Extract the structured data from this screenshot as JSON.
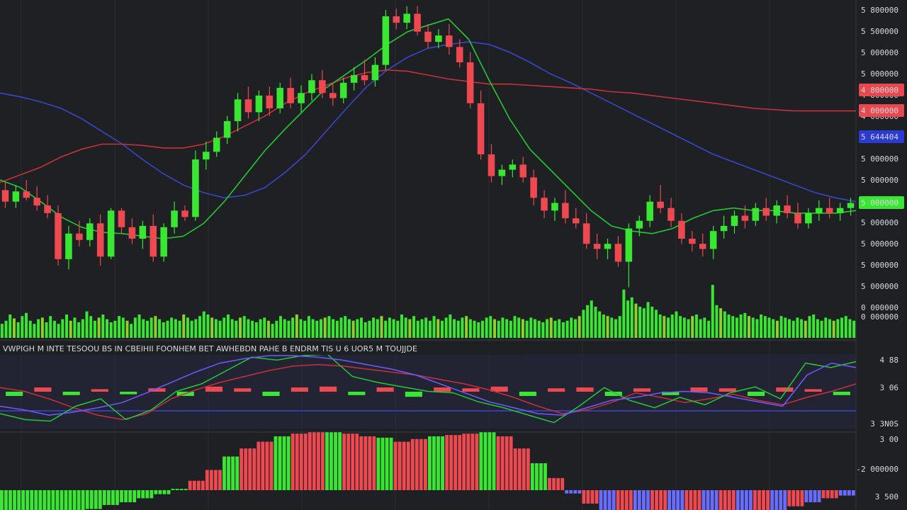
{
  "chart_data": [
    {
      "panel": "price",
      "type": "candlestick",
      "price_axis_labels": [
        "5 800000",
        "5 500000",
        "5 000000",
        "5 000000",
        "4 800000",
        "4 000000",
        "5 644404",
        "5 000000",
        "5 000000",
        "5 000000",
        "5 000000",
        "5 000000",
        "5 000000",
        "5 000000",
        "0 000000"
      ],
      "badges": [
        {
          "label": "4 800000",
          "color": "#e8484f",
          "series": "red"
        },
        {
          "label": "4 000000",
          "color": "#e8484f",
          "series": "red"
        },
        {
          "label": "5 644404",
          "color": "#2b3ad0",
          "series": "blue"
        },
        {
          "label": "5 000000",
          "color": "#39e632",
          "series": "green"
        }
      ],
      "candles": [
        {
          "o": 5.14,
          "h": 5.2,
          "l": 5.0,
          "c": 5.05
        },
        {
          "o": 5.05,
          "h": 5.18,
          "l": 5.0,
          "c": 5.13
        },
        {
          "o": 5.13,
          "h": 5.22,
          "l": 5.06,
          "c": 5.08
        },
        {
          "o": 5.08,
          "h": 5.17,
          "l": 4.98,
          "c": 5.02
        },
        {
          "o": 5.02,
          "h": 5.1,
          "l": 4.92,
          "c": 4.96
        },
        {
          "o": 4.96,
          "h": 5.02,
          "l": 4.55,
          "c": 4.6
        },
        {
          "o": 4.6,
          "h": 4.86,
          "l": 4.52,
          "c": 4.8
        },
        {
          "o": 4.8,
          "h": 4.9,
          "l": 4.7,
          "c": 4.75
        },
        {
          "o": 4.75,
          "h": 4.92,
          "l": 4.7,
          "c": 4.88
        },
        {
          "o": 4.88,
          "h": 4.95,
          "l": 4.55,
          "c": 4.62
        },
        {
          "o": 4.62,
          "h": 5.0,
          "l": 4.6,
          "c": 4.98
        },
        {
          "o": 4.98,
          "h": 5.0,
          "l": 4.8,
          "c": 4.85
        },
        {
          "o": 4.85,
          "h": 4.92,
          "l": 4.72,
          "c": 4.76
        },
        {
          "o": 4.76,
          "h": 4.9,
          "l": 4.68,
          "c": 4.86
        },
        {
          "o": 4.86,
          "h": 4.95,
          "l": 4.58,
          "c": 4.62
        },
        {
          "o": 4.62,
          "h": 4.88,
          "l": 4.58,
          "c": 4.85
        },
        {
          "o": 4.85,
          "h": 5.05,
          "l": 4.8,
          "c": 4.98
        },
        {
          "o": 4.98,
          "h": 5.02,
          "l": 4.9,
          "c": 4.93
        },
        {
          "o": 4.93,
          "h": 5.45,
          "l": 4.9,
          "c": 5.38
        },
        {
          "o": 5.38,
          "h": 5.52,
          "l": 5.3,
          "c": 5.44
        },
        {
          "o": 5.44,
          "h": 5.6,
          "l": 5.4,
          "c": 5.55
        },
        {
          "o": 5.55,
          "h": 5.72,
          "l": 5.5,
          "c": 5.68
        },
        {
          "o": 5.68,
          "h": 5.9,
          "l": 5.6,
          "c": 5.85
        },
        {
          "o": 5.85,
          "h": 5.95,
          "l": 5.7,
          "c": 5.75
        },
        {
          "o": 5.75,
          "h": 5.92,
          "l": 5.68,
          "c": 5.88
        },
        {
          "o": 5.88,
          "h": 5.95,
          "l": 5.72,
          "c": 5.78
        },
        {
          "o": 5.78,
          "h": 5.98,
          "l": 5.74,
          "c": 5.94
        },
        {
          "o": 5.94,
          "h": 6.02,
          "l": 5.78,
          "c": 5.82
        },
        {
          "o": 5.82,
          "h": 5.96,
          "l": 5.75,
          "c": 5.9
        },
        {
          "o": 5.9,
          "h": 6.05,
          "l": 5.84,
          "c": 6.0
        },
        {
          "o": 6.0,
          "h": 6.08,
          "l": 5.86,
          "c": 5.9
        },
        {
          "o": 5.9,
          "h": 5.98,
          "l": 5.8,
          "c": 5.86
        },
        {
          "o": 5.86,
          "h": 6.02,
          "l": 5.82,
          "c": 5.98
        },
        {
          "o": 5.98,
          "h": 6.1,
          "l": 5.92,
          "c": 6.04
        },
        {
          "o": 6.04,
          "h": 6.16,
          "l": 5.96,
          "c": 6.0
        },
        {
          "o": 6.0,
          "h": 6.18,
          "l": 5.95,
          "c": 6.12
        },
        {
          "o": 6.12,
          "h": 6.55,
          "l": 6.08,
          "c": 6.5
        },
        {
          "o": 6.5,
          "h": 6.56,
          "l": 6.4,
          "c": 6.45
        },
        {
          "o": 6.45,
          "h": 6.58,
          "l": 6.4,
          "c": 6.52
        },
        {
          "o": 6.52,
          "h": 6.58,
          "l": 6.35,
          "c": 6.38
        },
        {
          "o": 6.38,
          "h": 6.44,
          "l": 6.25,
          "c": 6.3
        },
        {
          "o": 6.3,
          "h": 6.4,
          "l": 6.25,
          "c": 6.35
        },
        {
          "o": 6.35,
          "h": 6.44,
          "l": 6.2,
          "c": 6.26
        },
        {
          "o": 6.26,
          "h": 6.32,
          "l": 6.1,
          "c": 6.14
        },
        {
          "o": 6.14,
          "h": 6.22,
          "l": 5.78,
          "c": 5.82
        },
        {
          "o": 5.82,
          "h": 5.92,
          "l": 5.38,
          "c": 5.42
        },
        {
          "o": 5.42,
          "h": 5.5,
          "l": 5.2,
          "c": 5.25
        },
        {
          "o": 5.25,
          "h": 5.34,
          "l": 5.18,
          "c": 5.3
        },
        {
          "o": 5.3,
          "h": 5.38,
          "l": 5.24,
          "c": 5.34
        },
        {
          "o": 5.34,
          "h": 5.4,
          "l": 5.2,
          "c": 5.24
        },
        {
          "o": 5.24,
          "h": 5.3,
          "l": 5.02,
          "c": 5.08
        },
        {
          "o": 5.08,
          "h": 5.14,
          "l": 4.92,
          "c": 4.98
        },
        {
          "o": 4.98,
          "h": 5.08,
          "l": 4.9,
          "c": 5.04
        },
        {
          "o": 5.04,
          "h": 5.14,
          "l": 4.88,
          "c": 4.92
        },
        {
          "o": 4.92,
          "h": 5.0,
          "l": 4.84,
          "c": 4.88
        },
        {
          "o": 4.88,
          "h": 4.96,
          "l": 4.68,
          "c": 4.72
        },
        {
          "o": 4.72,
          "h": 4.8,
          "l": 4.6,
          "c": 4.68
        },
        {
          "o": 4.68,
          "h": 4.76,
          "l": 4.6,
          "c": 4.72
        },
        {
          "o": 4.72,
          "h": 4.78,
          "l": 4.54,
          "c": 4.58
        },
        {
          "o": 4.58,
          "h": 4.88,
          "l": 4.38,
          "c": 4.84
        },
        {
          "o": 4.84,
          "h": 4.94,
          "l": 4.78,
          "c": 4.9
        },
        {
          "o": 4.9,
          "h": 5.1,
          "l": 4.85,
          "c": 5.05
        },
        {
          "o": 5.05,
          "h": 5.18,
          "l": 4.96,
          "c": 5.0
        },
        {
          "o": 5.0,
          "h": 5.08,
          "l": 4.85,
          "c": 4.9
        },
        {
          "o": 4.9,
          "h": 4.96,
          "l": 4.72,
          "c": 4.76
        },
        {
          "o": 4.76,
          "h": 4.82,
          "l": 4.66,
          "c": 4.72
        },
        {
          "o": 4.72,
          "h": 4.8,
          "l": 4.62,
          "c": 4.68
        },
        {
          "o": 4.68,
          "h": 4.86,
          "l": 4.6,
          "c": 4.82
        },
        {
          "o": 4.82,
          "h": 4.94,
          "l": 4.76,
          "c": 4.86
        },
        {
          "o": 4.86,
          "h": 4.98,
          "l": 4.8,
          "c": 4.94
        },
        {
          "o": 4.94,
          "h": 5.02,
          "l": 4.84,
          "c": 4.9
        },
        {
          "o": 4.9,
          "h": 5.04,
          "l": 4.86,
          "c": 5.0
        },
        {
          "o": 5.0,
          "h": 5.08,
          "l": 4.9,
          "c": 4.94
        },
        {
          "o": 4.94,
          "h": 5.06,
          "l": 4.88,
          "c": 5.02
        },
        {
          "o": 5.02,
          "h": 5.1,
          "l": 4.92,
          "c": 4.96
        },
        {
          "o": 4.96,
          "h": 5.04,
          "l": 4.84,
          "c": 4.88
        },
        {
          "o": 4.88,
          "h": 5.0,
          "l": 4.84,
          "c": 4.96
        },
        {
          "o": 4.96,
          "h": 5.06,
          "l": 4.9,
          "c": 5.0
        },
        {
          "o": 5.0,
          "h": 5.08,
          "l": 4.92,
          "c": 4.96
        },
        {
          "o": 4.96,
          "h": 5.04,
          "l": 4.9,
          "c": 5.0
        },
        {
          "o": 5.0,
          "h": 5.08,
          "l": 4.94,
          "c": 5.04
        }
      ],
      "moving_averages": [
        {
          "color": "#3a46c8",
          "values": [
            5.9,
            5.87,
            5.83,
            5.78,
            5.7,
            5.6,
            5.5,
            5.38,
            5.27,
            5.18,
            5.12,
            5.08,
            5.1,
            5.16,
            5.28,
            5.42,
            5.6,
            5.78,
            5.95,
            6.08,
            6.18,
            6.25,
            6.28,
            6.3,
            6.28,
            6.22,
            6.14,
            6.05,
            5.98,
            5.9,
            5.82,
            5.74,
            5.66,
            5.58,
            5.5,
            5.42,
            5.36,
            5.3,
            5.24,
            5.18,
            5.12,
            5.08,
            5.05
          ]
        },
        {
          "color": "#c8303a",
          "values": [
            5.2,
            5.26,
            5.32,
            5.4,
            5.46,
            5.5,
            5.5,
            5.49,
            5.47,
            5.47,
            5.5,
            5.56,
            5.64,
            5.72,
            5.82,
            5.9,
            5.96,
            6.02,
            6.06,
            6.08,
            6.07,
            6.04,
            6.01,
            5.99,
            5.97,
            5.97,
            5.96,
            5.95,
            5.94,
            5.93,
            5.91,
            5.9,
            5.88,
            5.86,
            5.84,
            5.82,
            5.8,
            5.78,
            5.77,
            5.76,
            5.76,
            5.76,
            5.76
          ]
        },
        {
          "color": "#25c832",
          "values": [
            5.22,
            5.16,
            5.05,
            4.93,
            4.85,
            4.81,
            4.8,
            4.78,
            4.76,
            4.78,
            4.88,
            5.05,
            5.25,
            5.45,
            5.62,
            5.78,
            5.94,
            6.05,
            6.16,
            6.28,
            6.38,
            6.43,
            6.48,
            6.32,
            6.0,
            5.7,
            5.46,
            5.3,
            5.14,
            4.98,
            4.86,
            4.82,
            4.8,
            4.84,
            4.92,
            4.98,
            5.0,
            4.98,
            4.98,
            4.96,
            4.96,
            4.96,
            4.98
          ]
        }
      ]
    },
    {
      "panel": "volume",
      "type": "bar",
      "values": [
        18,
        22,
        30,
        25,
        20,
        28,
        32,
        22,
        18,
        24,
        26,
        20,
        28,
        22,
        18,
        24,
        30,
        22,
        26,
        20,
        24,
        34,
        28,
        22,
        26,
        30,
        24,
        20,
        22,
        28,
        26,
        22,
        18,
        26,
        30,
        24,
        22,
        26,
        28,
        24,
        20,
        22,
        26,
        24,
        22,
        30,
        26,
        22,
        24,
        28,
        34,
        30,
        26,
        24,
        22,
        26,
        30,
        24,
        22,
        26,
        28,
        24,
        22,
        20,
        24,
        26,
        22,
        18,
        22,
        28,
        24,
        22,
        26,
        30,
        24,
        22,
        28,
        24,
        22,
        24,
        26,
        28,
        24,
        22,
        26,
        28,
        24,
        22,
        24,
        26,
        20,
        22,
        26,
        24,
        28,
        22,
        26,
        24,
        22,
        30,
        26,
        24,
        28,
        22,
        24,
        26,
        22,
        28,
        24,
        22,
        26,
        30,
        24,
        22,
        26,
        28,
        24,
        22,
        20,
        22,
        26,
        28,
        24,
        22,
        26,
        24,
        22,
        28,
        26,
        24,
        22,
        26,
        24,
        22,
        20,
        24,
        26,
        22,
        24,
        20,
        22,
        26,
        24,
        28,
        36,
        42,
        48,
        40,
        34,
        30,
        28,
        26,
        24,
        28,
        62,
        48,
        52,
        44,
        40,
        38,
        46,
        40,
        36,
        30,
        28,
        26,
        30,
        34,
        28,
        26,
        24,
        28,
        30,
        24,
        26,
        22,
        68,
        42,
        38,
        34,
        30,
        28,
        26,
        30,
        32,
        28,
        26,
        24,
        30,
        28,
        26,
        24,
        22,
        28,
        26,
        24,
        22,
        26,
        24,
        22,
        28,
        30,
        24,
        22,
        26,
        24,
        22,
        24,
        26,
        28,
        24,
        22
      ],
      "axis_label": "0 000000"
    },
    {
      "panel": "oscillator",
      "type": "line",
      "legend": "VWPIGH M INTE  TESOOU BS  IN CBEIHII   FOONHEM BET AWHEBDN PAHE  B  ENDRM TIS   U  6  UOR5 M TOUJJDE",
      "axis_labels": [
        "4 88",
        "3 06",
        "3 3N0S"
      ],
      "series": [
        {
          "color": "#c8303a",
          "values": [
            0.55,
            0.5,
            0.4,
            0.28,
            0.18,
            0.12,
            0.2,
            0.4,
            0.52,
            0.62,
            0.7,
            0.78,
            0.84,
            0.86,
            0.84,
            0.8,
            0.76,
            0.72,
            0.66,
            0.6,
            0.52,
            0.42,
            0.3,
            0.2,
            0.25,
            0.35,
            0.48,
            0.42,
            0.35,
            0.4,
            0.46,
            0.38,
            0.32,
            0.42,
            0.5,
            0.6
          ]
        },
        {
          "color": "#25c832",
          "values": [
            0.2,
            0.12,
            0.1,
            0.3,
            0.4,
            0.12,
            0.25,
            0.5,
            0.6,
            0.78,
            0.96,
            0.92,
            0.98,
            1.0,
            0.7,
            0.62,
            0.56,
            0.5,
            0.48,
            0.36,
            0.28,
            0.18,
            0.08,
            0.3,
            0.55,
            0.38,
            0.28,
            0.42,
            0.32,
            0.48,
            0.56,
            0.4,
            0.88,
            0.82,
            0.9
          ]
        },
        {
          "color": "#6a5cff",
          "values": [
            0.3,
            0.25,
            0.18,
            0.22,
            0.28,
            0.35,
            0.48,
            0.62,
            0.76,
            0.88,
            0.94,
            0.98,
            0.98,
            0.96,
            0.92,
            0.86,
            0.8,
            0.72,
            0.6,
            0.48,
            0.36,
            0.28,
            0.2,
            0.18,
            0.28,
            0.38,
            0.42,
            0.48,
            0.5,
            0.48,
            0.42,
            0.36,
            0.3,
            0.72,
            0.88,
            0.82
          ]
        }
      ],
      "histogram": [
        -0.05,
        0.05,
        -0.04,
        0.03,
        -0.03,
        0.04,
        -0.05,
        0.06,
        0.04,
        -0.05,
        0.05,
        0.06,
        -0.04,
        0.05,
        -0.06,
        0.05,
        0.04,
        0.06,
        -0.05,
        0.04,
        0.05,
        -0.05,
        0.04,
        -0.04,
        0.05,
        0.04,
        -0.05,
        0.05,
        0.03,
        -0.04
      ]
    },
    {
      "panel": "macd-histogram",
      "type": "bar",
      "axis_labels": [
        "3 00",
        "-2 000000",
        "3 500"
      ],
      "values": [
        -0.35,
        -0.4,
        -0.38,
        -0.3,
        -0.34,
        -0.28,
        -0.22,
        -0.18,
        -0.12,
        -0.06,
        0.02,
        0.14,
        0.3,
        0.5,
        0.62,
        0.72,
        0.8,
        0.84,
        0.86,
        0.86,
        0.84,
        0.8,
        0.78,
        0.72,
        0.76,
        0.8,
        0.82,
        0.84,
        0.86,
        0.8,
        0.62,
        0.4,
        0.18,
        -0.05,
        -0.2,
        -0.35,
        -0.4,
        -0.42,
        -0.44,
        -0.44,
        -0.43,
        -0.42,
        -0.4,
        -0.38,
        -0.35,
        -0.3,
        -0.24,
        -0.18,
        -0.12,
        -0.08
      ]
    }
  ]
}
